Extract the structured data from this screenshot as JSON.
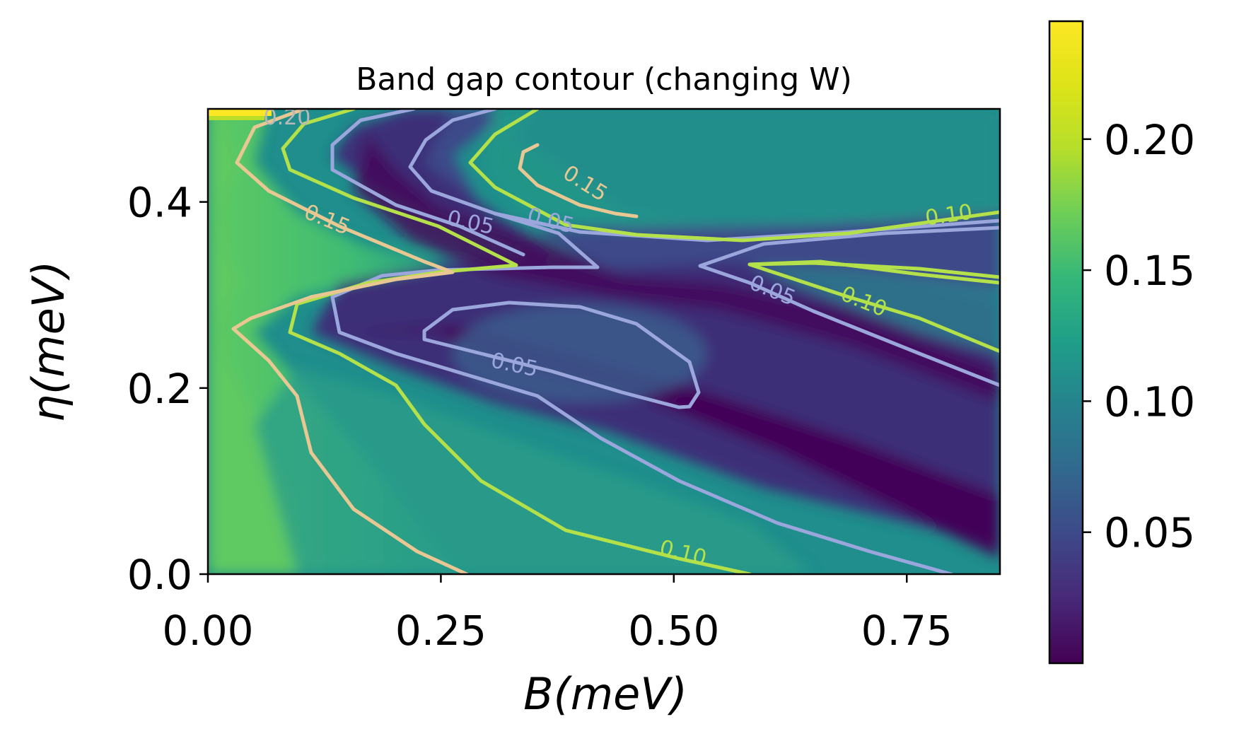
{
  "chart_data": {
    "type": "heatmap",
    "title": "Band gap contour (changing W)",
    "xlabel": "B(meV)",
    "ylabel": "η(meV)",
    "xlim": [
      0.0,
      0.85
    ],
    "ylim": [
      0.0,
      0.5
    ],
    "x_ticks": [
      "0.00",
      "0.25",
      "0.50",
      "0.75"
    ],
    "x_tick_values": [
      0.0,
      0.25,
      0.5,
      0.75
    ],
    "y_ticks": [
      "0.0",
      "0.2",
      "0.4"
    ],
    "y_tick_values": [
      0.0,
      0.2,
      0.4
    ],
    "colormap": "viridis",
    "colorbar": {
      "range": [
        0.0,
        0.245
      ],
      "ticks": [
        "0.05",
        "0.10",
        "0.15",
        "0.20"
      ],
      "tick_values": [
        0.05,
        0.1,
        0.15,
        0.2
      ]
    },
    "contour_levels": [
      {
        "level": 0.05,
        "color": "#9aa6dc"
      },
      {
        "level": 0.1,
        "color": "#b4e04a"
      },
      {
        "level": 0.15,
        "color": "#e8c792"
      },
      {
        "level": 0.2,
        "color": "#b9b9b9"
      }
    ],
    "contour_labels": [
      {
        "text": "0.20",
        "x": 0.085,
        "y": 0.491,
        "level": 0.2
      },
      {
        "text": "0.15",
        "x": 0.405,
        "y": 0.42,
        "level": 0.15
      },
      {
        "text": "0.15",
        "x": 0.128,
        "y": 0.381,
        "level": 0.15
      },
      {
        "text": "0.05",
        "x": 0.282,
        "y": 0.378,
        "level": 0.05
      },
      {
        "text": "0.05",
        "x": 0.368,
        "y": 0.38,
        "level": 0.05
      },
      {
        "text": "0.10",
        "x": 0.795,
        "y": 0.386,
        "level": 0.1
      },
      {
        "text": "0.05",
        "x": 0.606,
        "y": 0.305,
        "level": 0.05
      },
      {
        "text": "0.10",
        "x": 0.704,
        "y": 0.293,
        "level": 0.1
      },
      {
        "text": "0.05",
        "x": 0.329,
        "y": 0.225,
        "level": 0.05
      },
      {
        "text": "0.10",
        "x": 0.51,
        "y": 0.023,
        "level": 0.1
      }
    ]
  }
}
